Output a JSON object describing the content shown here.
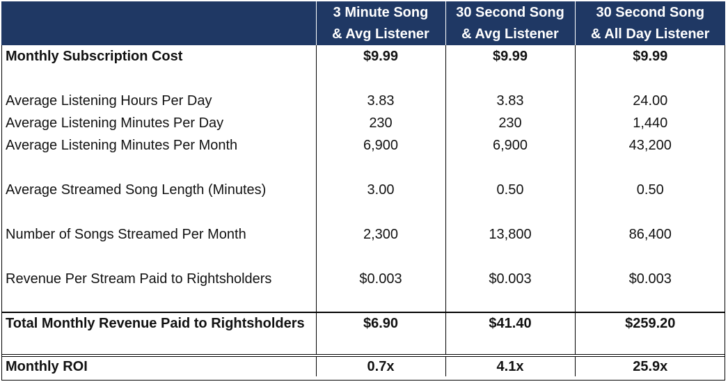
{
  "header": {
    "columns": [
      {
        "line1": "3 Minute Song",
        "line2": "& Avg Listener"
      },
      {
        "line1": "30 Second Song",
        "line2": "& Avg Listener"
      },
      {
        "line1": "30 Second Song",
        "line2": "& All Day Listener"
      }
    ]
  },
  "rows": [
    {
      "label": "Monthly Subscription Cost",
      "values": [
        "$9.99",
        "$9.99",
        "$9.99"
      ]
    },
    {
      "label": "Average Listening Hours Per Day",
      "values": [
        "3.83",
        "3.83",
        "24.00"
      ]
    },
    {
      "label": "Average Listening Minutes Per Day",
      "values": [
        "230",
        "230",
        "1,440"
      ]
    },
    {
      "label": "Average Listening Minutes Per Month",
      "values": [
        "6,900",
        "6,900",
        "43,200"
      ]
    },
    {
      "label": "Average Streamed Song Length (Minutes)",
      "values": [
        "3.00",
        "0.50",
        "0.50"
      ]
    },
    {
      "label": "Number of Songs Streamed Per Month",
      "values": [
        "2,300",
        "13,800",
        "86,400"
      ]
    },
    {
      "label": "Revenue Per Stream Paid to Rightsholders",
      "values": [
        "$0.003",
        "$0.003",
        "$0.003"
      ]
    },
    {
      "label": "Total Monthly Revenue Paid to Rightsholders",
      "values": [
        "$6.90",
        "$41.40",
        "$259.20"
      ]
    },
    {
      "label": "Monthly ROI",
      "values": [
        "0.7x",
        "4.1x",
        "25.9x"
      ]
    }
  ],
  "colors": {
    "header_bg": "#1f3864",
    "header_text": "#ffffff",
    "border": "#000000"
  }
}
